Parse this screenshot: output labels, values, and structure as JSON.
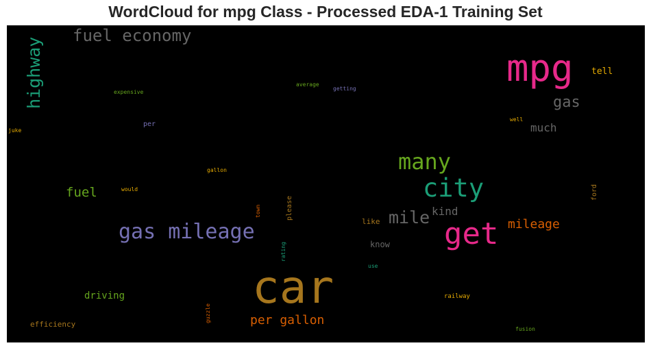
{
  "header": {
    "title": "WordCloud for mpg Class - Processed EDA-1 Training Set"
  },
  "chart_data": {
    "type": "wordcloud",
    "title": "WordCloud for mpg Class - Processed EDA-1 Training Set",
    "background": "#000000",
    "words": [
      {
        "text": "car",
        "color": "#a6761d",
        "orientation": "horizontal"
      },
      {
        "text": "mpg",
        "color": "#e7298a",
        "orientation": "horizontal"
      },
      {
        "text": "get",
        "color": "#e7298a",
        "orientation": "horizontal"
      },
      {
        "text": "city",
        "color": "#1b9e77",
        "orientation": "horizontal"
      },
      {
        "text": "many",
        "color": "#66a61e",
        "orientation": "horizontal"
      },
      {
        "text": "gas mileage",
        "color": "#7570b3",
        "orientation": "horizontal"
      },
      {
        "text": "fuel economy",
        "color": "#666666",
        "orientation": "horizontal"
      },
      {
        "text": "highway",
        "color": "#1b9e77",
        "orientation": "vertical"
      },
      {
        "text": "mile",
        "color": "#666666",
        "orientation": "horizontal"
      },
      {
        "text": "gas",
        "color": "#666666",
        "orientation": "horizontal"
      },
      {
        "text": "mileage",
        "color": "#d95f02",
        "orientation": "horizontal"
      },
      {
        "text": "per gallon",
        "color": "#d95f02",
        "orientation": "horizontal"
      },
      {
        "text": "fuel",
        "color": "#66a61e",
        "orientation": "horizontal"
      },
      {
        "text": "much",
        "color": "#666666",
        "orientation": "horizontal"
      },
      {
        "text": "kind",
        "color": "#666666",
        "orientation": "horizontal"
      },
      {
        "text": "driving",
        "color": "#66a61e",
        "orientation": "horizontal"
      },
      {
        "text": "tell",
        "color": "#e6ab02",
        "orientation": "horizontal"
      },
      {
        "text": "efficiency",
        "color": "#a6761d",
        "orientation": "horizontal"
      },
      {
        "text": "know",
        "color": "#666666",
        "orientation": "horizontal"
      },
      {
        "text": "like",
        "color": "#a6761d",
        "orientation": "horizontal"
      },
      {
        "text": "per",
        "color": "#7570b3",
        "orientation": "horizontal"
      },
      {
        "text": "ford",
        "color": "#a6761d",
        "orientation": "vertical"
      },
      {
        "text": "please",
        "color": "#a6761d",
        "orientation": "vertical"
      },
      {
        "text": "railway",
        "color": "#e6ab02",
        "orientation": "horizontal"
      },
      {
        "text": "fusion",
        "color": "#66a61e",
        "orientation": "horizontal"
      },
      {
        "text": "gallon",
        "color": "#e6ab02",
        "orientation": "horizontal"
      },
      {
        "text": "would",
        "color": "#e6ab02",
        "orientation": "horizontal"
      },
      {
        "text": "town",
        "color": "#d95f02",
        "orientation": "vertical"
      },
      {
        "text": "rating",
        "color": "#1b9e77",
        "orientation": "vertical"
      },
      {
        "text": "guzzle",
        "color": "#d95f02",
        "orientation": "vertical"
      },
      {
        "text": "use",
        "color": "#1b9e77",
        "orientation": "horizontal"
      },
      {
        "text": "expensive",
        "color": "#66a61e",
        "orientation": "horizontal"
      },
      {
        "text": "average",
        "color": "#66a61e",
        "orientation": "horizontal"
      },
      {
        "text": "getting",
        "color": "#7570b3",
        "orientation": "horizontal"
      },
      {
        "text": "juke",
        "color": "#e6ab02",
        "orientation": "horizontal"
      },
      {
        "text": "well",
        "color": "#e6ab02",
        "orientation": "horizontal"
      }
    ]
  }
}
